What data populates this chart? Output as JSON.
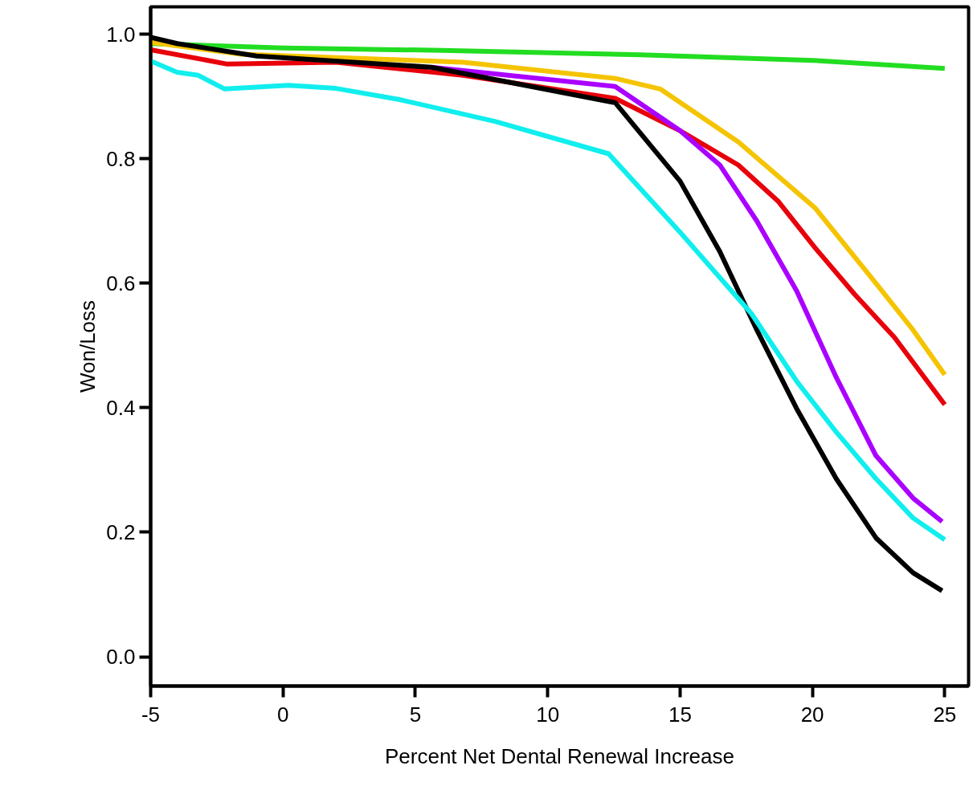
{
  "chart_data": {
    "type": "line",
    "xlabel": "Percent Net Dental Renewal Increase",
    "ylabel": "Won/Loss",
    "xlim": [
      -5,
      25.9
    ],
    "ylim": [
      -0.047,
      1.044
    ],
    "xticks": [
      -5,
      0,
      5,
      10,
      15,
      20,
      25
    ],
    "yticks": [
      {
        "value": 0,
        "label": "0.0"
      },
      0.2,
      0.4,
      0.6,
      0.8,
      {
        "value": 1,
        "label": "1.0"
      }
    ],
    "grid": false,
    "marker": "none",
    "line_style": "solid",
    "series": [
      {
        "color": "#22dd22",
        "x": [
          -5,
          0,
          6,
          13.5,
          20,
          25
        ],
        "values": [
          0.985,
          0.978,
          0.974,
          0.967,
          0.958,
          0.945
        ]
      },
      {
        "color": "#f5c400",
        "x": [
          -5,
          -1.6,
          6.8,
          12.55,
          14.25,
          17.2,
          20.1,
          22.4,
          23.8,
          25
        ],
        "values": [
          0.987,
          0.968,
          0.955,
          0.929,
          0.912,
          0.827,
          0.721,
          0.6,
          0.525,
          0.453
        ]
      },
      {
        "color": "#e8000b",
        "x": [
          -5,
          -2.1,
          2.0,
          6.8,
          12.55,
          15,
          17.2,
          18.7,
          20.1,
          21.6,
          23.1,
          25
        ],
        "values": [
          0.975,
          0.952,
          0.955,
          0.934,
          0.897,
          0.845,
          0.79,
          0.732,
          0.657,
          0.582,
          0.513,
          0.405
        ]
      },
      {
        "color": "#aa00ff",
        "x": [
          5.6,
          12.55,
          15,
          16.5,
          17.9,
          19.4,
          20.9,
          22.4,
          23.8,
          24.9
        ],
        "values": [
          0.947,
          0.916,
          0.845,
          0.79,
          0.7,
          0.588,
          0.449,
          0.323,
          0.255,
          0.217
        ]
      },
      {
        "color": "#000000",
        "x": [
          -5,
          -4,
          -1,
          5.6,
          12.55,
          15,
          16.5,
          17.9,
          19.4,
          20.9,
          22.4,
          23.8,
          24.9
        ],
        "values": [
          0.995,
          0.985,
          0.965,
          0.947,
          0.89,
          0.764,
          0.651,
          0.525,
          0.399,
          0.286,
          0.191,
          0.135,
          0.106
        ]
      },
      {
        "color": "#11eeee",
        "x": [
          -5,
          -4,
          -3.2,
          -2.2,
          0.2,
          2.0,
          4.4,
          8.0,
          12.3,
          15,
          17.7,
          19.4,
          20.9,
          22.4,
          23.8,
          25
        ],
        "values": [
          0.957,
          0.939,
          0.934,
          0.912,
          0.918,
          0.913,
          0.895,
          0.86,
          0.808,
          0.682,
          0.551,
          0.443,
          0.361,
          0.286,
          0.223,
          0.188
        ]
      }
    ]
  }
}
